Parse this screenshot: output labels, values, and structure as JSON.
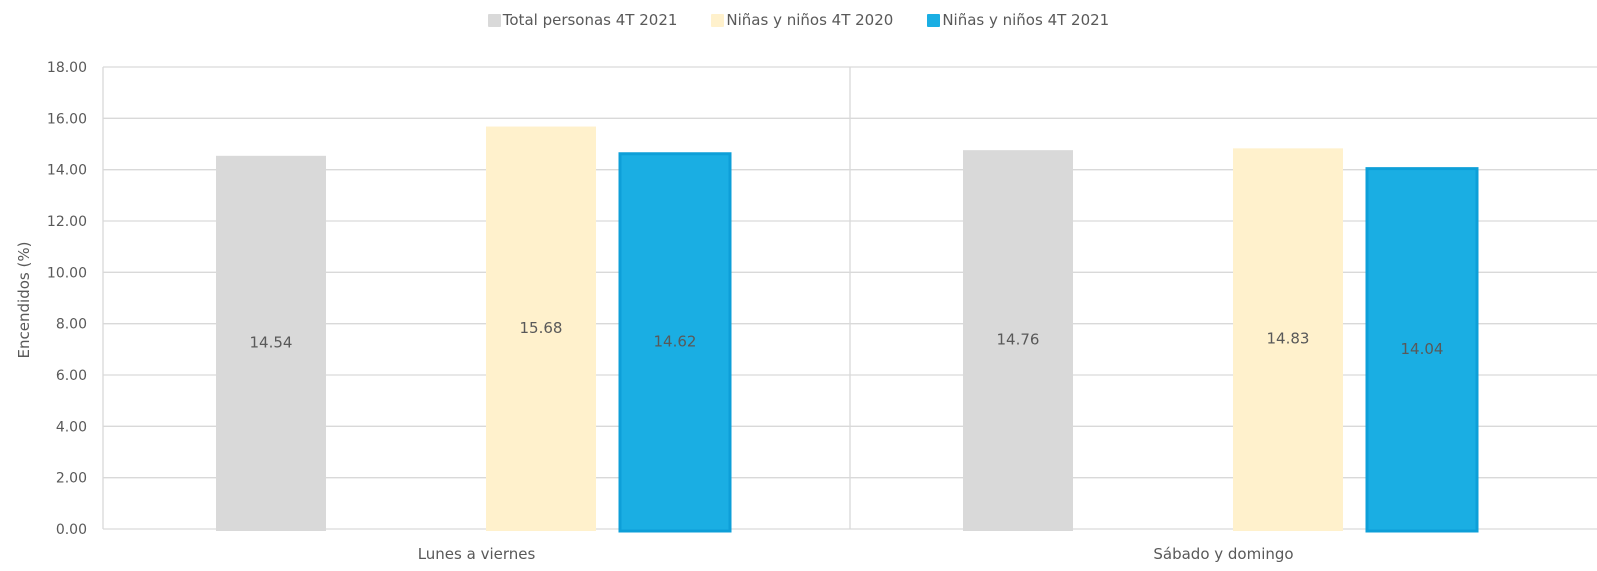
{
  "chart_data": {
    "type": "bar",
    "categories": [
      "Lunes a viernes",
      "Sábado y domingo"
    ],
    "series": [
      {
        "name": "Total personas 4T 2021",
        "color": "#d9d9d9",
        "values": [
          14.54,
          14.76
        ]
      },
      {
        "name": "Niñas y niños 4T 2020",
        "color": "#fff1cc",
        "values": [
          15.68,
          14.83
        ]
      },
      {
        "name": "Niñas y niños 4T 2021",
        "color": "#1aaee3",
        "values": [
          14.62,
          14.04
        ]
      }
    ],
    "ylabel": "Encendidos (%)",
    "xlabel": "",
    "ylim": [
      0,
      18
    ],
    "yticks": [
      "0.00",
      "2.00",
      "4.00",
      "6.00",
      "8.00",
      "10.00",
      "12.00",
      "14.00",
      "16.00",
      "18.00"
    ],
    "grid": true,
    "legend_position": "top"
  }
}
